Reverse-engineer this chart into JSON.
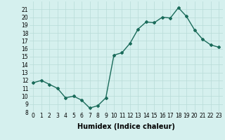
{
  "x": [
    0,
    1,
    2,
    3,
    4,
    5,
    6,
    7,
    8,
    9,
    10,
    11,
    12,
    13,
    14,
    15,
    16,
    17,
    18,
    19,
    20,
    21,
    22,
    23
  ],
  "y": [
    11.7,
    12.0,
    11.5,
    11.0,
    9.8,
    10.0,
    9.5,
    8.5,
    8.8,
    9.8,
    15.2,
    15.5,
    16.7,
    18.5,
    19.4,
    19.3,
    20.0,
    19.9,
    21.2,
    20.1,
    18.4,
    17.2,
    16.5,
    16.2
  ],
  "line_color": "#1a6b5a",
  "marker": "D",
  "marker_size": 2,
  "bg_color": "#d5f0ee",
  "grid_color": "#b8dbd8",
  "xlabel": "Humidex (Indice chaleur)",
  "ylim": [
    8,
    22
  ],
  "xlim": [
    -0.5,
    23.5
  ],
  "yticks": [
    8,
    9,
    10,
    11,
    12,
    13,
    14,
    15,
    16,
    17,
    18,
    19,
    20,
    21
  ],
  "xticks": [
    0,
    1,
    2,
    3,
    4,
    5,
    6,
    7,
    8,
    9,
    10,
    11,
    12,
    13,
    14,
    15,
    16,
    17,
    18,
    19,
    20,
    21,
    22,
    23
  ],
  "tick_label_fontsize": 5.5,
  "xlabel_fontsize": 7,
  "line_width": 1.0
}
